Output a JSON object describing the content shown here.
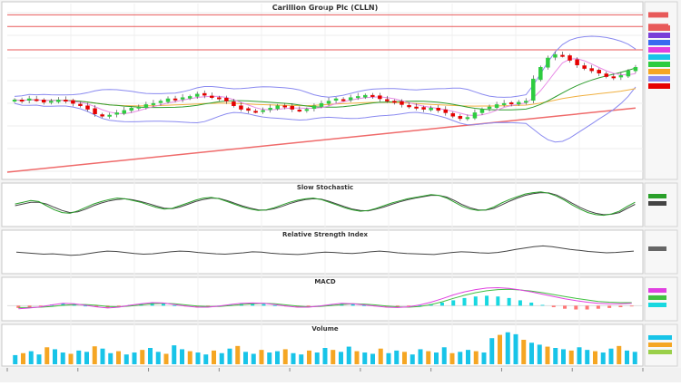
{
  "window": {
    "title": "Carillion Group Plc (CLLN)"
  },
  "chart_data": {
    "type": "candlestick",
    "main_title": "Carillion Group Plc (CLLN)",
    "price_axis": {
      "range": [
        60,
        200
      ]
    },
    "hlines": [
      {
        "value": 195,
        "color": "#e85a5a"
      },
      {
        "value": 185,
        "color": "#e85a5a"
      },
      {
        "value": 165,
        "color": "#e85a5a"
      }
    ],
    "colors": {
      "up": "#2ecc40",
      "down": "#e60000",
      "bb": "#8a8af0",
      "ma_fast": "#e88be6",
      "ma_mid": "#2f9e2f",
      "ma_slow": "#f0b040",
      "trend": "#ef6a6a",
      "stoch_k": "#2aa02a",
      "stoch_d": "#444444",
      "rsi": "#444444",
      "macd_pos": "#18d8e0",
      "macd_neg": "#ff7777",
      "macd_line": "#e040e0",
      "signal_line": "#40c040",
      "vol_up": "#18c4e8",
      "vol_down": "#f5a623"
    },
    "candles_close": [
      122,
      121,
      123,
      122,
      120,
      121,
      122,
      121,
      119,
      117,
      114,
      110,
      108,
      109,
      111,
      113,
      115,
      116,
      118,
      119,
      121,
      123,
      122,
      124,
      125,
      127,
      126,
      124,
      123,
      121,
      117,
      114,
      113,
      112,
      113,
      115,
      117,
      116,
      114,
      113,
      114,
      117,
      119,
      121,
      123,
      122,
      124,
      125,
      126,
      125,
      123,
      121,
      120,
      118,
      116,
      115,
      114,
      115,
      113,
      111,
      108,
      106,
      107,
      111,
      114,
      116,
      118,
      119,
      119,
      120,
      121,
      140,
      150,
      158,
      161,
      160,
      156,
      152,
      149,
      147,
      145,
      142,
      141,
      143,
      147,
      150
    ],
    "panels": [
      {
        "name": "Slow Stochastic",
        "range": [
          0,
          100
        ]
      },
      {
        "name": "Relative Strength Index",
        "range": [
          0,
          100
        ]
      },
      {
        "name": "MACD",
        "range": [
          -3,
          6
        ]
      },
      {
        "name": "Volume",
        "range": [
          0,
          100
        ]
      }
    ],
    "stochastic_k": [
      55,
      60,
      65,
      62,
      50,
      38,
      30,
      28,
      35,
      45,
      55,
      62,
      68,
      72,
      70,
      65,
      60,
      52,
      45,
      40,
      42,
      50,
      58,
      66,
      72,
      74,
      70,
      62,
      54,
      46,
      40,
      36,
      38,
      44,
      52,
      60,
      66,
      70,
      72,
      68,
      60,
      52,
      44,
      38,
      34,
      36,
      42,
      50,
      58,
      64,
      70,
      74,
      78,
      82,
      80,
      72,
      60,
      48,
      40,
      36,
      38,
      46,
      58,
      68,
      76,
      84,
      88,
      90,
      86,
      78,
      66,
      52,
      40,
      30,
      24,
      22,
      26,
      34,
      48,
      60
    ],
    "stochastic_d": [
      50,
      55,
      60,
      60,
      55,
      45,
      36,
      30,
      32,
      40,
      50,
      58,
      64,
      68,
      70,
      67,
      62,
      56,
      49,
      43,
      41,
      46,
      54,
      62,
      68,
      72,
      71,
      65,
      57,
      49,
      43,
      38,
      37,
      41,
      48,
      56,
      63,
      68,
      70,
      69,
      63,
      55,
      47,
      40,
      36,
      35,
      40,
      46,
      54,
      61,
      67,
      72,
      76,
      80,
      80,
      75,
      65,
      53,
      44,
      38,
      37,
      42,
      52,
      63,
      72,
      80,
      85,
      88,
      87,
      81,
      70,
      57,
      45,
      35,
      28,
      24,
      25,
      30,
      42,
      54
    ],
    "rsi": [
      52,
      50,
      48,
      46,
      47,
      45,
      43,
      44,
      48,
      52,
      55,
      54,
      51,
      48,
      46,
      47,
      50,
      53,
      55,
      54,
      51,
      49,
      47,
      46,
      48,
      50,
      53,
      52,
      49,
      47,
      46,
      45,
      47,
      50,
      52,
      51,
      49,
      48,
      50,
      53,
      55,
      53,
      50,
      48,
      47,
      46,
      45,
      48,
      51,
      53,
      52,
      50,
      49,
      51,
      55,
      60,
      64,
      68,
      70,
      68,
      64,
      60,
      57,
      54,
      52,
      50,
      51,
      53,
      55
    ],
    "macd_hist": [
      -0.6,
      -0.4,
      -0.1,
      0.3,
      0.6,
      0.4,
      0.0,
      -0.3,
      -0.5,
      -0.2,
      0.2,
      0.5,
      0.7,
      0.5,
      0.1,
      -0.2,
      -0.4,
      -0.3,
      0.0,
      0.3,
      0.5,
      0.6,
      0.4,
      0.1,
      -0.2,
      -0.4,
      -0.3,
      0.0,
      0.3,
      0.5,
      0.4,
      0.1,
      -0.1,
      -0.3,
      -0.4,
      -0.2,
      0.1,
      0.4,
      0.8,
      1.4,
      2.0,
      2.4,
      2.6,
      2.4,
      2.0,
      1.4,
      0.8,
      0.2,
      -0.4,
      -0.8,
      -1.0,
      -1.0,
      -0.8,
      -0.6,
      -0.4,
      -0.2
    ],
    "macd_line": [
      -0.8,
      -0.6,
      -0.3,
      0.2,
      0.6,
      0.5,
      0.1,
      -0.3,
      -0.6,
      -0.4,
      0.1,
      0.5,
      0.8,
      0.7,
      0.3,
      -0.1,
      -0.4,
      -0.4,
      -0.1,
      0.3,
      0.6,
      0.7,
      0.6,
      0.3,
      -0.1,
      -0.4,
      -0.4,
      -0.1,
      0.3,
      0.6,
      0.5,
      0.2,
      -0.1,
      -0.4,
      -0.5,
      -0.3,
      0.2,
      0.9,
      1.8,
      2.8,
      3.6,
      4.2,
      4.6,
      4.7,
      4.5,
      4.1,
      3.6,
      3.0,
      2.4,
      1.8,
      1.3,
      0.9,
      0.6,
      0.5,
      0.5,
      0.6
    ],
    "macd_signal": [
      -0.5,
      -0.5,
      -0.4,
      -0.2,
      0.1,
      0.3,
      0.3,
      0.1,
      -0.2,
      -0.3,
      -0.1,
      0.2,
      0.5,
      0.6,
      0.5,
      0.2,
      -0.1,
      -0.2,
      -0.2,
      0.0,
      0.3,
      0.5,
      0.6,
      0.5,
      0.2,
      -0.1,
      -0.3,
      -0.2,
      0.0,
      0.3,
      0.5,
      0.4,
      0.2,
      -0.1,
      -0.3,
      -0.4,
      -0.2,
      0.3,
      1.0,
      1.9,
      2.7,
      3.4,
      3.9,
      4.2,
      4.3,
      4.1,
      3.8,
      3.4,
      2.9,
      2.4,
      1.9,
      1.5,
      1.1,
      0.9,
      0.8,
      0.8
    ],
    "volume": [
      28,
      34,
      40,
      30,
      52,
      46,
      36,
      32,
      42,
      38,
      55,
      48,
      34,
      40,
      30,
      36,
      44,
      50,
      38,
      32,
      58,
      46,
      40,
      36,
      30,
      42,
      34,
      48,
      56,
      38,
      32,
      44,
      36,
      40,
      46,
      34,
      30,
      42,
      36,
      50,
      44,
      38,
      54,
      40,
      36,
      32,
      48,
      34,
      42,
      38,
      30,
      46,
      40,
      36,
      52,
      34,
      38,
      44,
      40,
      36,
      80,
      90,
      98,
      92,
      75,
      66,
      60,
      54,
      50,
      46,
      42,
      52,
      44,
      40,
      36,
      48,
      56,
      42,
      38
    ]
  }
}
